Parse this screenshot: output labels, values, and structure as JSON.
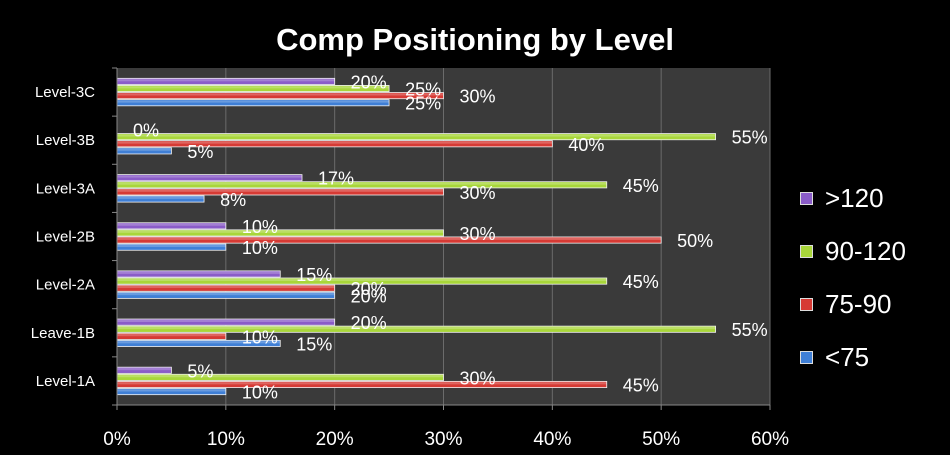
{
  "chart_data": {
    "type": "bar",
    "orientation": "horizontal",
    "title": "Comp Positioning by Level",
    "categories": [
      "Level-1A",
      "Leave-1B",
      "Level-2A",
      "Level-2B",
      "Level-3A",
      "Level-3B",
      "Level-3C"
    ],
    "series": [
      {
        "name": "<75",
        "color": "#3f7fd6",
        "values": [
          10,
          15,
          20,
          10,
          8,
          5,
          25
        ]
      },
      {
        "name": "75-90",
        "color": "#d63a34",
        "values": [
          45,
          10,
          20,
          50,
          30,
          40,
          30
        ]
      },
      {
        "name": "90-120",
        "color": "#a8d63a",
        "values": [
          30,
          55,
          45,
          30,
          45,
          55,
          25
        ]
      },
      {
        "name": ">120",
        "color": "#8a5cc8",
        "values": [
          5,
          20,
          15,
          10,
          17,
          0,
          20
        ]
      }
    ],
    "xlim": [
      0,
      60
    ],
    "xticks": [
      "0%",
      "10%",
      "20%",
      "30%",
      "40%",
      "50%",
      "60%"
    ],
    "value_suffix": "%",
    "grid": true,
    "legend_position": "right"
  },
  "colors": {
    "background": "#000000",
    "plot_area": "#3a3a3a",
    "gridline": "#6b6b6b"
  }
}
